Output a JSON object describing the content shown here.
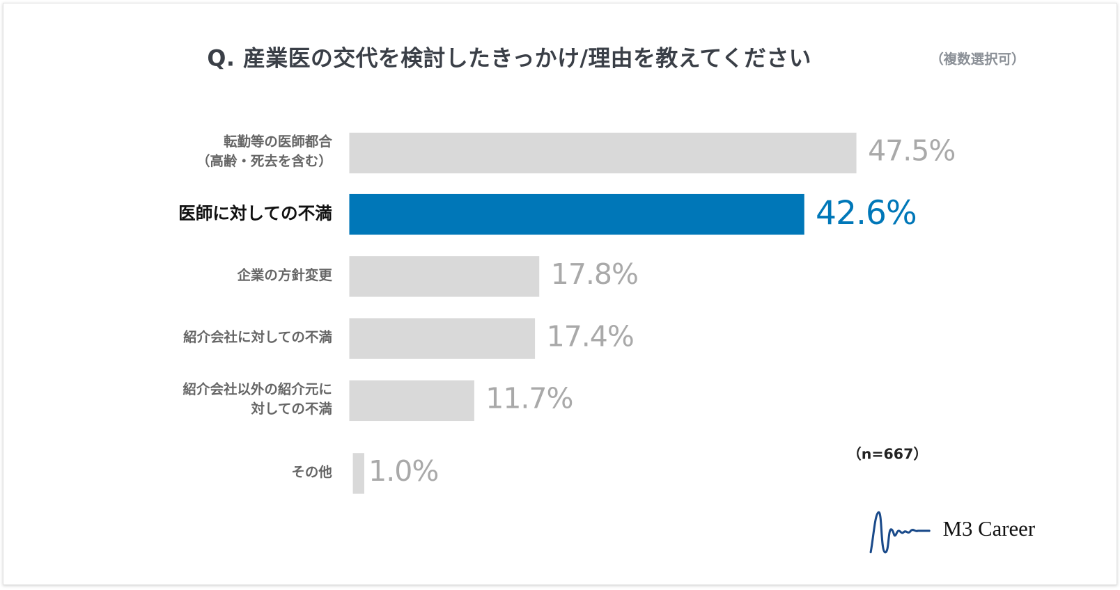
{
  "chart_data": {
    "type": "bar",
    "orientation": "horizontal",
    "title": "Q. 産業医の交代を検討したきっかけ/理由を教えてください",
    "subtitle": "（複数選択可）",
    "categories": [
      "転勤等の医師都合\n（高齢・死去を含む）",
      "医師に対しての不満",
      "企業の方針変更",
      "紹介会社に対しての不満",
      "紹介会社以外の紹介元に\n対しての不満",
      "その他"
    ],
    "values": [
      47.5,
      42.6,
      17.8,
      17.4,
      11.7,
      1.0
    ],
    "value_labels": [
      "47.5%",
      "42.6%",
      "17.8%",
      "17.4%",
      "11.7%",
      "1.0%"
    ],
    "highlight_index": 1,
    "unit": "%",
    "xlim": [
      0,
      50
    ],
    "grid": false,
    "note": "（n=667）",
    "colors": {
      "default": "#d9d9d9",
      "highlight": "#0077b8",
      "label": "#a9a9a9"
    }
  },
  "logo": {
    "text": "M3 Career"
  }
}
